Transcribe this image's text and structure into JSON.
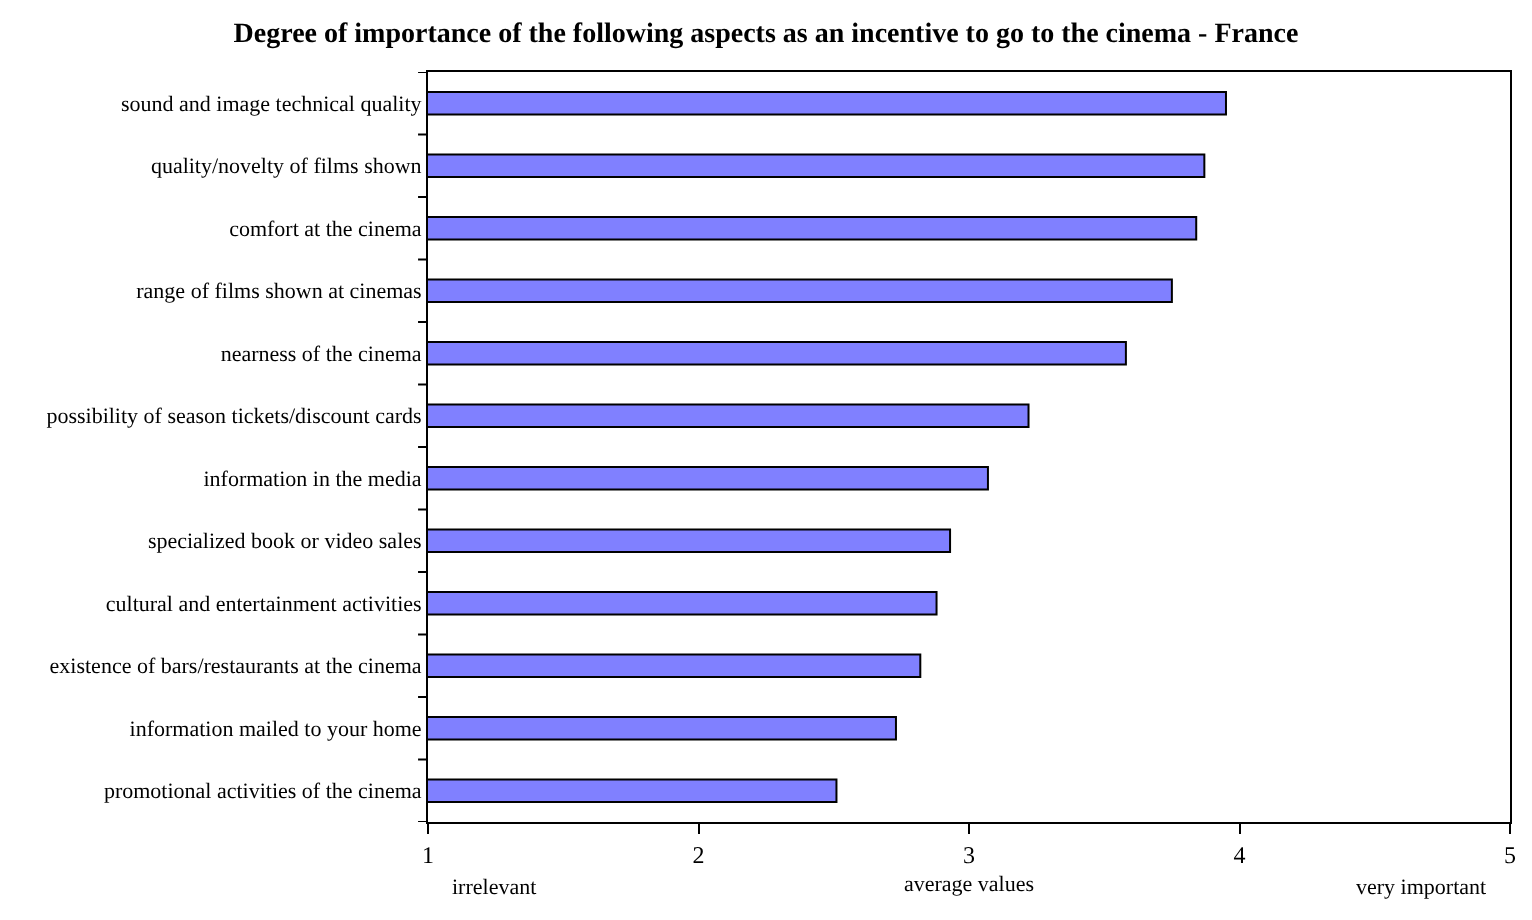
{
  "chart_data": {
    "type": "bar",
    "orientation": "horizontal",
    "title": "Degree of importance of the following aspects as an incentive to go to the cinema - France",
    "xlabel": "average values",
    "annotations": [
      "irrelevant",
      "very important"
    ],
    "categories": [
      "sound and image technical quality",
      "quality/novelty of films shown",
      "comfort at the cinema",
      "range of films shown at cinemas",
      "nearness of the cinema",
      "possibility of season tickets/discount cards",
      "information in the media",
      "specialized book or video sales",
      "cultural and entertainment activities",
      "existence of bars/restaurants at the cinema",
      "information mailed to your home",
      "promotional activities of the cinema"
    ],
    "values": [
      3.95,
      3.87,
      3.84,
      3.75,
      3.58,
      3.22,
      3.07,
      2.93,
      2.88,
      2.82,
      2.73,
      2.51
    ],
    "color": "#8080ff",
    "xlim": [
      1,
      5
    ],
    "xticks": [
      1,
      2,
      3,
      4,
      5
    ],
    "grid": false
  }
}
